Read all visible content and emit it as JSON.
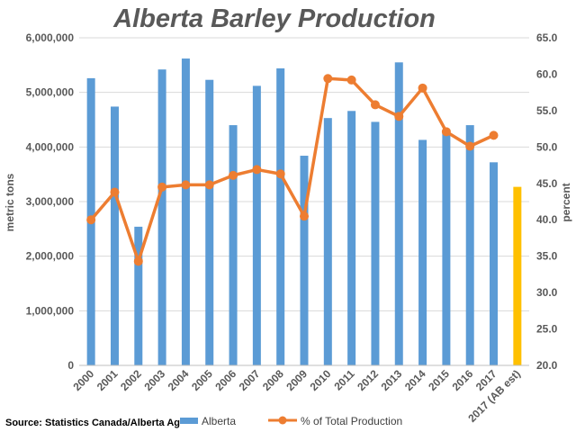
{
  "chart_data": {
    "type": "bar",
    "title": "Alberta Barley Production",
    "ylabel": "metric tons",
    "y2label": "percent",
    "ylim": [
      0,
      6000000
    ],
    "y2lim": [
      20,
      65
    ],
    "y_ticks": [
      "0",
      "1,000,000",
      "2,000,000",
      "3,000,000",
      "4,000,000",
      "5,000,000",
      "6,000,000"
    ],
    "y2_ticks": [
      "20.0",
      "25.0",
      "30.0",
      "35.0",
      "40.0",
      "45.0",
      "50.0",
      "55.0",
      "60.0",
      "65.0"
    ],
    "categories": [
      "2000",
      "2001",
      "2002",
      "2003",
      "2004",
      "2005",
      "2006",
      "2007",
      "2008",
      "2009",
      "2010",
      "2011",
      "2012",
      "2013",
      "2014",
      "2015",
      "2016",
      "2017",
      "2017 (AB est)"
    ],
    "grid": true,
    "legend_position": "bottom",
    "series": [
      {
        "name": "Alberta",
        "kind": "bar",
        "axis": "left",
        "color": "#5B9BD5",
        "values": [
          5260000,
          4740000,
          2540000,
          5420000,
          5620000,
          5230000,
          4400000,
          5120000,
          5440000,
          3840000,
          4530000,
          4660000,
          4460000,
          5550000,
          4130000,
          4300000,
          4400000,
          3720000,
          null
        ]
      },
      {
        "name": "% of Total Production",
        "kind": "line",
        "axis": "right",
        "color": "#ED7D31",
        "values": [
          40.0,
          43.8,
          34.3,
          44.5,
          44.8,
          44.8,
          46.1,
          46.9,
          46.3,
          40.5,
          59.4,
          59.2,
          55.8,
          54.2,
          58.1,
          52.1,
          50.1,
          51.6,
          null
        ]
      }
    ],
    "highlight": {
      "category": "2017 (AB est)",
      "value": 3270000,
      "color": "#FFC000"
    }
  },
  "footer": {
    "source": "Source: Statistics Canada/Alberta Ag"
  }
}
